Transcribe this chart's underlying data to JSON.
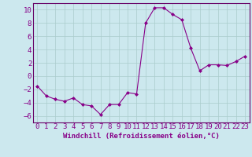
{
  "x": [
    0,
    1,
    2,
    3,
    4,
    5,
    6,
    7,
    8,
    9,
    10,
    11,
    12,
    13,
    14,
    15,
    16,
    17,
    18,
    19,
    20,
    21,
    22,
    23
  ],
  "y": [
    -1.5,
    -3.0,
    -3.5,
    -3.8,
    -3.3,
    -4.3,
    -4.5,
    -5.8,
    -4.3,
    -4.3,
    -2.5,
    -2.7,
    8.0,
    10.3,
    10.3,
    9.3,
    8.5,
    4.2,
    0.8,
    1.7,
    1.7,
    1.6,
    2.2,
    3.0
  ],
  "line_color": "#880088",
  "marker": "D",
  "marker_size": 2,
  "bg_color": "#cce8ee",
  "grid_color": "#aacccc",
  "xlabel": "Windchill (Refroidissement éolien,°C)",
  "xlabel_fontsize": 6.5,
  "tick_fontsize": 6.5,
  "ylim": [
    -7,
    11
  ],
  "yticks": [
    -6,
    -4,
    -2,
    0,
    2,
    4,
    6,
    8,
    10
  ],
  "xticks": [
    0,
    1,
    2,
    3,
    4,
    5,
    6,
    7,
    8,
    9,
    10,
    11,
    12,
    13,
    14,
    15,
    16,
    17,
    18,
    19,
    20,
    21,
    22,
    23
  ],
  "axes_color": "#880088",
  "spine_color": "#660066"
}
